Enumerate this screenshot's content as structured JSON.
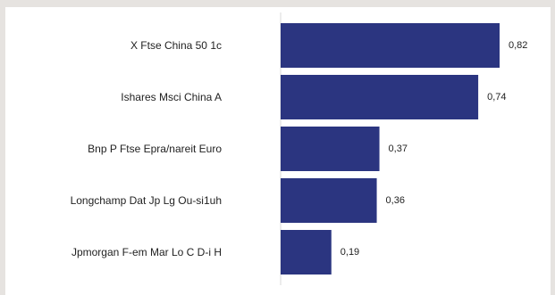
{
  "chart_data": {
    "type": "bar",
    "orientation": "horizontal",
    "categories": [
      "X Ftse China 50 1c",
      "Ishares Msci China A",
      "Bnp P Ftse Epra/nareit Euro",
      "Longchamp Dat Jp Lg Ou-si1uh",
      "Jpmorgan F-em Mar Lo C D-i H"
    ],
    "values": [
      0.82,
      0.74,
      0.37,
      0.36,
      0.19
    ],
    "value_labels": [
      "0,82",
      "0,74",
      "0,37",
      "0,36",
      "0,19"
    ],
    "title": "",
    "xlabel": "",
    "ylabel": "",
    "xlim": [
      0,
      0.82
    ],
    "grid": false,
    "legend": "none",
    "bar_color": "#2b3580",
    "axis_color": "#d9d9d9"
  }
}
